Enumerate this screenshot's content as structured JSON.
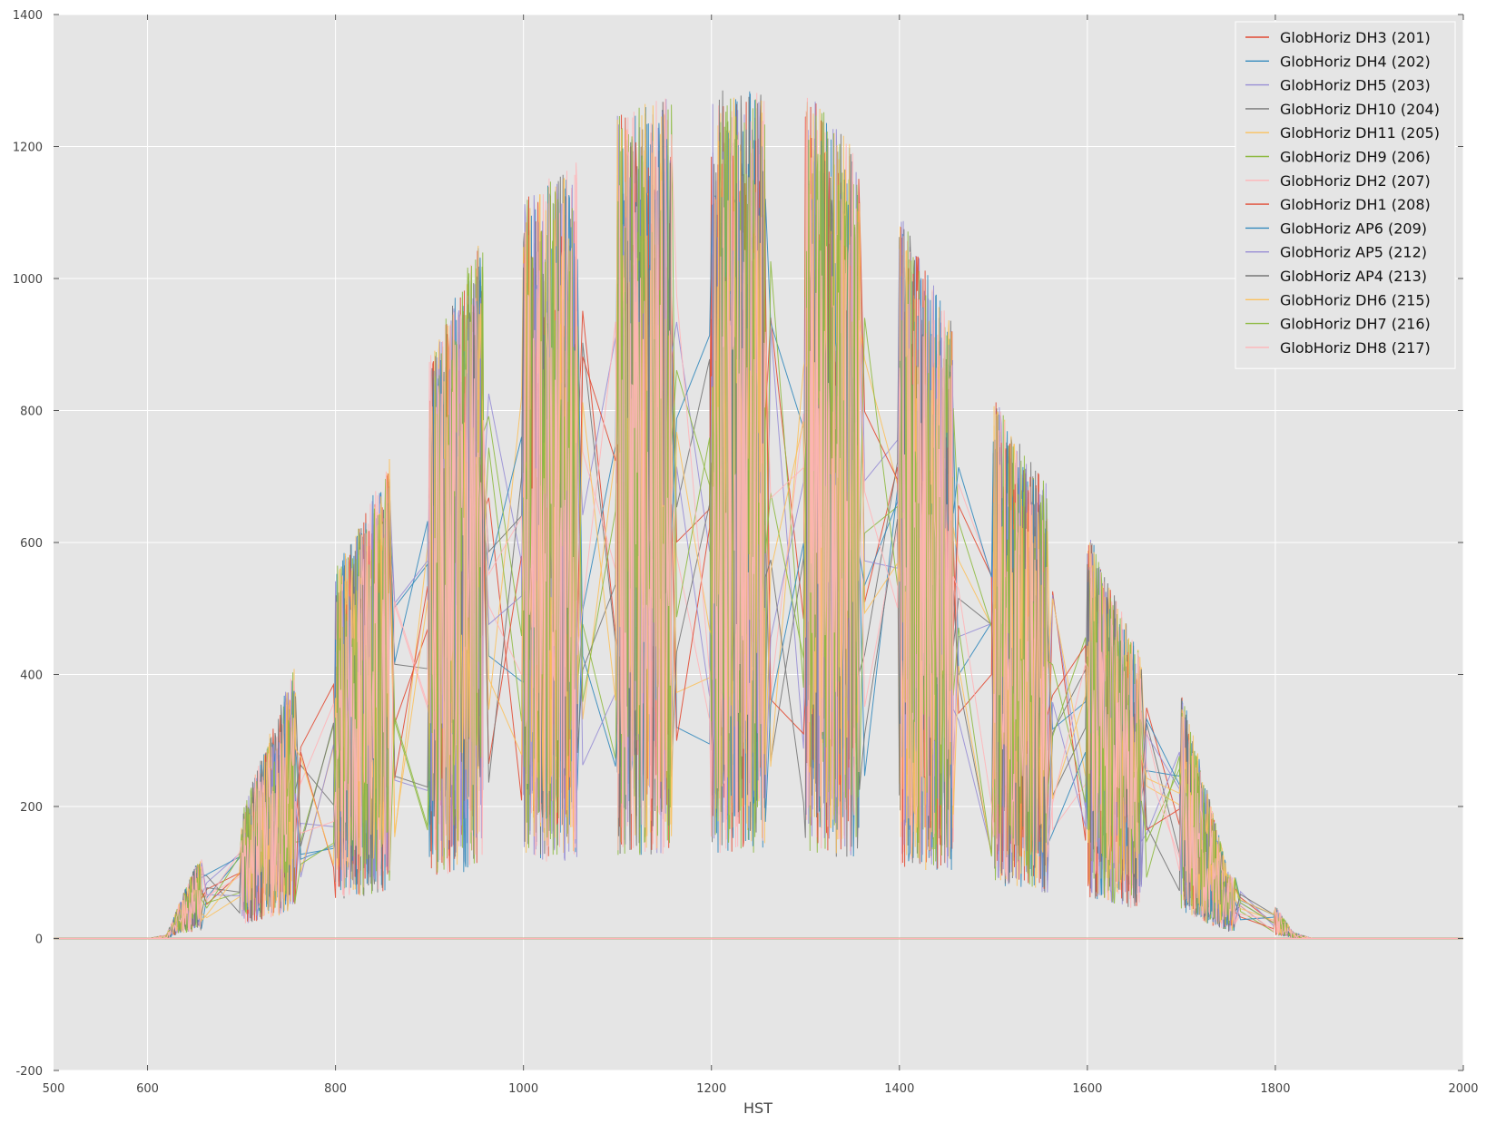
{
  "chart_data": {
    "type": "line",
    "title": "",
    "xlabel": "HST",
    "ylabel": "",
    "xlim": [
      500,
      2000
    ],
    "ylim": [
      -200,
      1400
    ],
    "x_ticks": [
      600,
      800,
      1000,
      1200,
      1400,
      1600,
      1800,
      2000
    ],
    "y_ticks": [
      -200,
      0,
      200,
      400,
      600,
      800,
      1000,
      1200,
      1400
    ],
    "grid": true,
    "legend_position": "top-right",
    "series": [
      {
        "name": "GlobHoriz DH3 (201)",
        "color": "#E24A33",
        "seed": 201
      },
      {
        "name": "GlobHoriz DH4 (202)",
        "color": "#348ABD",
        "seed": 202
      },
      {
        "name": "GlobHoriz DH5 (203)",
        "color": "#988ED5",
        "seed": 203
      },
      {
        "name": "GlobHoriz DH10 (204)",
        "color": "#777777",
        "seed": 204
      },
      {
        "name": "GlobHoriz DH11 (205)",
        "color": "#FBC15E",
        "seed": 205
      },
      {
        "name": "GlobHoriz DH9 (206)",
        "color": "#8EBA42",
        "seed": 206
      },
      {
        "name": "GlobHoriz DH2 (207)",
        "color": "#FFB5B8",
        "seed": 207
      },
      {
        "name": "GlobHoriz DH1 (208)",
        "color": "#E24A33",
        "seed": 208
      },
      {
        "name": "GlobHoriz AP6 (209)",
        "color": "#348ABD",
        "seed": 209
      },
      {
        "name": "GlobHoriz AP5 (212)",
        "color": "#988ED5",
        "seed": 212
      },
      {
        "name": "GlobHoriz AP4 (213)",
        "color": "#777777",
        "seed": 213
      },
      {
        "name": "GlobHoriz DH6 (215)",
        "color": "#FBC15E",
        "seed": 215
      },
      {
        "name": "GlobHoriz DH7 (216)",
        "color": "#8EBA42",
        "seed": 216
      },
      {
        "name": "GlobHoriz DH8 (217)",
        "color": "#FFB5B8",
        "seed": 217
      }
    ]
  },
  "style": {
    "plot_background": "#E5E5E5",
    "grid_color": "#FFFFFF"
  }
}
